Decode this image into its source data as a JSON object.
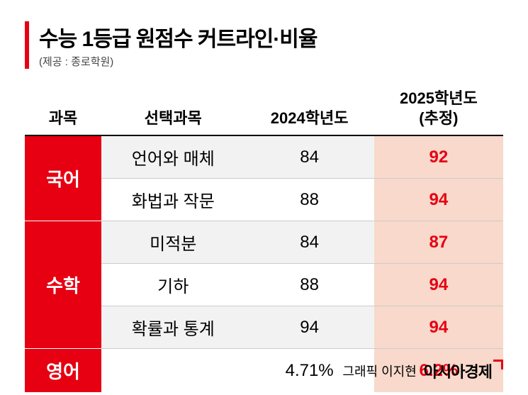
{
  "title": "수능 1등급 원점수 커트라인·비율",
  "source": "(제공 : 종로학원)",
  "colors": {
    "accent": "#e60012",
    "highlight_bg": "#f8d9cb",
    "alt_row_bg": "#f2f2f2",
    "border": "#cccccc",
    "text": "#000000"
  },
  "columns": {
    "subject": "과목",
    "option": "선택과목",
    "y2024": "2024학년도",
    "y2025_line1": "2025학년도",
    "y2025_line2": "(추정)"
  },
  "groups": [
    {
      "subject": "국어",
      "rows": [
        {
          "option": "언어와 매체",
          "y2024": "84",
          "y2025": "92",
          "alt": true
        },
        {
          "option": "화법과 작문",
          "y2024": "88",
          "y2025": "94",
          "alt": false
        }
      ]
    },
    {
      "subject": "수학",
      "rows": [
        {
          "option": "미적분",
          "y2024": "84",
          "y2025": "87",
          "alt": true
        },
        {
          "option": "기하",
          "y2024": "88",
          "y2025": "94",
          "alt": false
        },
        {
          "option": "확률과 통계",
          "y2024": "94",
          "y2025": "94",
          "alt": true
        }
      ]
    },
    {
      "subject": "영어",
      "rows": [
        {
          "option": "",
          "y2024": "4.71%",
          "y2025": "6.2%",
          "alt": false
        }
      ]
    }
  ],
  "credit_author": "그래픽 이지현",
  "credit_brand": "아시아경제"
}
